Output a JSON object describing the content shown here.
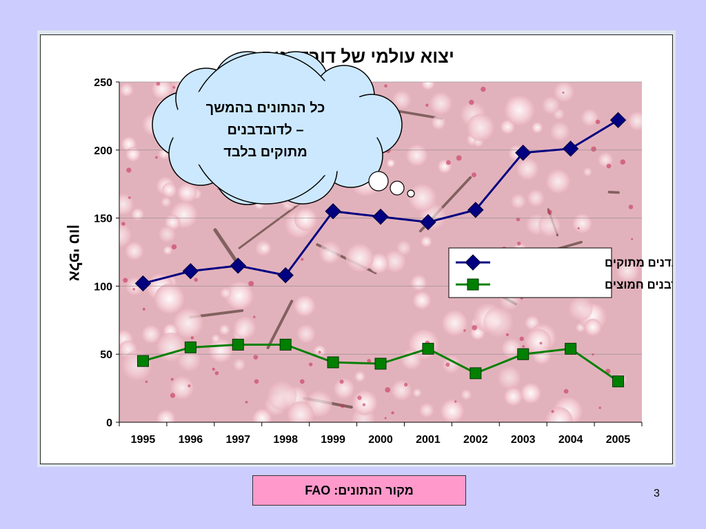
{
  "chart_data": {
    "type": "line",
    "title": "יצוא עולמי של דובדבנים",
    "xlabel": "",
    "ylabel": "אלפי טון",
    "categories": [
      "1995",
      "1996",
      "1997",
      "1998",
      "1999",
      "2000",
      "2001",
      "2002",
      "2003",
      "2004",
      "2005"
    ],
    "ylim": [
      0,
      250
    ],
    "yticks": [
      0,
      50,
      100,
      150,
      200,
      250
    ],
    "grid": true,
    "legend_position": "right-middle",
    "series": [
      {
        "name": "דובדנים מתוקים",
        "color": "#000080",
        "marker": "diamond",
        "values": [
          102,
          111,
          115,
          108,
          155,
          151,
          147,
          156,
          198,
          201,
          222
        ]
      },
      {
        "name": "דובדבנים חמוצים",
        "color": "#008000",
        "marker": "square",
        "values": [
          45,
          55,
          57,
          57,
          44,
          43,
          54,
          36,
          50,
          54,
          30
        ]
      }
    ],
    "annotation": {
      "lines": [
        "כל הנתונים בהמשך",
        "– לדובדבנים",
        "מתוקים בלבד"
      ],
      "fill": "#cce8ff"
    },
    "plot_background": "cherry blossom photo"
  },
  "footer": {
    "source_label": "מקור הנתונים: FAO",
    "source_bg": "#ff99cc",
    "page_number": "3"
  }
}
